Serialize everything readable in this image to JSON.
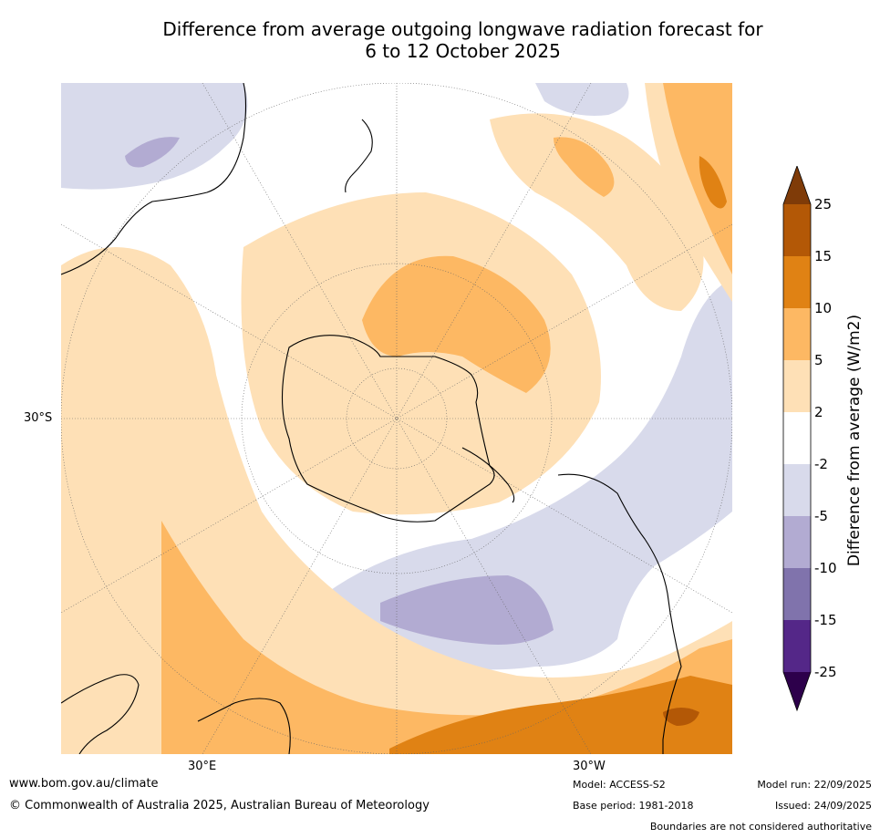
{
  "title": {
    "line1": "Difference from average outgoing longwave radiation forecast for",
    "line2": "6 to 12 October 2025"
  },
  "axis_labels": {
    "left": "30°S",
    "bottom_left": "30°E",
    "bottom_right": "30°W"
  },
  "colorbar": {
    "title": "Difference from average (W/m2)",
    "ticks": [
      "25",
      "15",
      "10",
      "5",
      "2",
      "-2",
      "-5",
      "-10",
      "-15",
      "-25"
    ],
    "colors": {
      "over": "#7f3b08",
      "b15_25": "#b35806",
      "b10_15": "#e08214",
      "b5_10": "#fdb863",
      "b2_5": "#fee0b6",
      "neutral": "#ffffff",
      "bm5_m2": "#d8daeb",
      "bm10_m5": "#b2abd2",
      "bm15_m10": "#8073ac",
      "bm25_m15": "#542788",
      "under": "#2d004b"
    }
  },
  "footer": {
    "website": "www.bom.gov.au/climate",
    "copyright": "© Commonwealth of Australia 2025, Australian Bureau of Meteorology",
    "model": "Model: ACCESS-S2",
    "base_period": "Base period: 1981-2018",
    "model_run": "Model run: 22/09/2025",
    "issued": "Issued: 24/09/2025",
    "disclaimer": "Boundaries are not considered authoritative"
  }
}
